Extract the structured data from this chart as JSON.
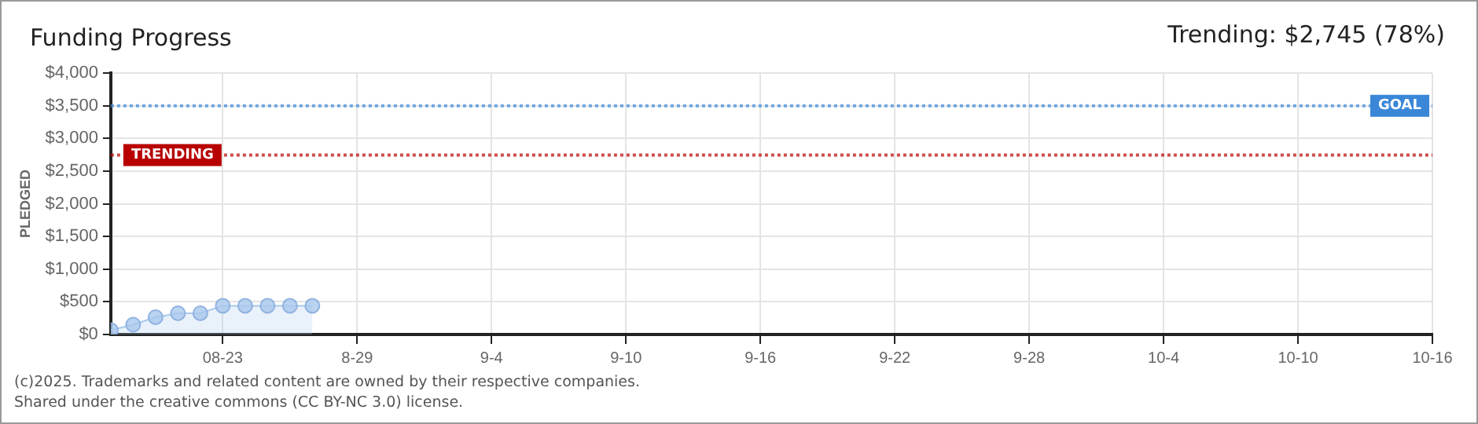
{
  "chart_data": {
    "type": "area",
    "title": "Funding Progress",
    "subtitle": "Trending: $2,745 (78%)",
    "ylabel": "PLEDGED",
    "x": [
      "2025-08-18",
      "2025-08-19",
      "2025-08-20",
      "2025-08-21",
      "2025-08-22",
      "2025-08-23",
      "2025-08-24",
      "2025-08-25",
      "2025-08-26",
      "2025-08-27"
    ],
    "series": [
      {
        "color": "#a8c8ec",
        "values": [
          65,
          150,
          265,
          325,
          325,
          440,
          440,
          440,
          440,
          440
        ]
      }
    ],
    "xlim": [
      "2025-08-18",
      "2025-10-16"
    ],
    "xticks": [
      {
        "value": "2025-08-23",
        "label": "08-23"
      },
      {
        "value": "2025-08-29",
        "label": "8-29"
      },
      {
        "value": "2025-09-04",
        "label": "9-4"
      },
      {
        "value": "2025-09-10",
        "label": "9-10"
      },
      {
        "value": "2025-09-16",
        "label": "9-16"
      },
      {
        "value": "2025-09-22",
        "label": "9-22"
      },
      {
        "value": "2025-09-28",
        "label": "9-28"
      },
      {
        "value": "2025-10-04",
        "label": "10-4"
      },
      {
        "value": "2025-10-10",
        "label": "10-10"
      },
      {
        "value": "2025-10-16",
        "label": "10-16"
      }
    ],
    "ylim": [
      0,
      4000
    ],
    "yticks": [
      {
        "value": 0,
        "label": "$0"
      },
      {
        "value": 500,
        "label": "$500"
      },
      {
        "value": 1000,
        "label": "$1,000"
      },
      {
        "value": 1500,
        "label": "$1,500"
      },
      {
        "value": 2000,
        "label": "$2,000"
      },
      {
        "value": 2500,
        "label": "$2,500"
      },
      {
        "value": 3000,
        "label": "$3,000"
      },
      {
        "value": 3500,
        "label": "$3,500"
      },
      {
        "value": 4000,
        "label": "$4,000"
      }
    ],
    "ref_lines": [
      {
        "axis": "y",
        "value": 3500,
        "label": "GOAL",
        "color": "#3a87d8",
        "line_style": "dotted"
      },
      {
        "axis": "y",
        "value": 2745,
        "label": "TRENDING",
        "color": "#b80000",
        "line_style": "dotted"
      }
    ],
    "grid": true,
    "marker": "circle",
    "legend": false,
    "annotations": [
      "(c)2025. Trademarks and related content are owned by their respective companies.",
      "Shared under the creative commons (CC BY-NC 3.0) license."
    ]
  }
}
